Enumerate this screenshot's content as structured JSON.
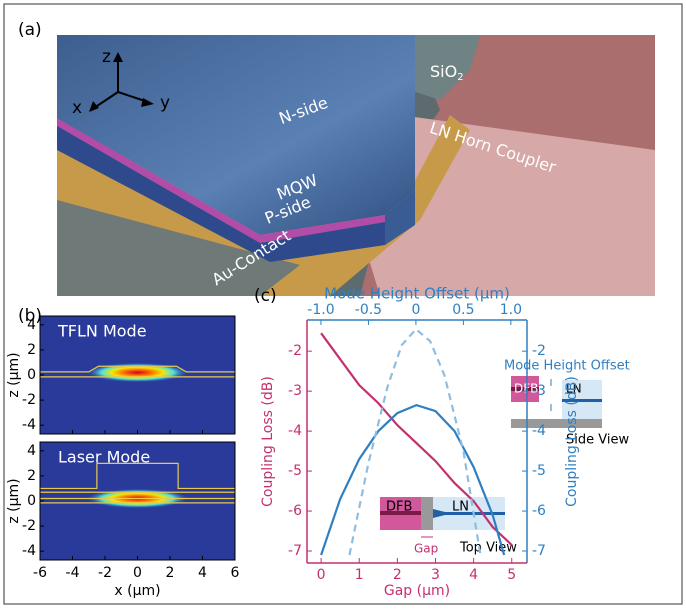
{
  "panel_a": {
    "label": "(a)",
    "axes": [
      "z",
      "x",
      "y"
    ],
    "n_side": "N-side",
    "mqw": "MQW",
    "p_side": "P-side",
    "au_contact": "Au-Contact",
    "sio2": {
      "text": "SiO",
      "subscript": "2"
    },
    "ln_horn": "LN Horn Coupler"
  },
  "panel_b": {
    "label": "(b)",
    "xlabel": "x (µm)",
    "xlim": [
      -6,
      6
    ],
    "xticks": [
      -6,
      -4,
      -2,
      0,
      2,
      4,
      6
    ],
    "plots": [
      {
        "title": "TFLN Mode",
        "ylabel": "z (µm)",
        "ylim": [
          -4.7,
          4.7
        ],
        "yticks": [
          4,
          2,
          0,
          -2,
          -4
        ]
      },
      {
        "title": "Laser Mode",
        "ylabel": "z (µm)",
        "ylim": [
          -4.7,
          4.7
        ],
        "yticks": [
          4,
          2,
          0,
          -2,
          -4
        ]
      }
    ]
  },
  "panel_c": {
    "label": "(c)",
    "annotations": {
      "mode_height": "Mode Height Offset",
      "dfb_side": "DFB",
      "ln_side": "LN",
      "side_view": "Side View",
      "dfb_top": "DFB",
      "ln_top": "LN",
      "gap": "Gap",
      "top_view": "Top View"
    }
  },
  "chart_data": {
    "type": "line",
    "xlabel": "Gap (µm)",
    "x2label": "Mode Height Offset (µm)",
    "ylabel": "Coupling Loss (dB)",
    "y2label": "Coupling Loss (dB)",
    "xlim": [
      -0.37,
      5.4
    ],
    "xticks": [
      0,
      1,
      2,
      3,
      4,
      5
    ],
    "x2lim": [
      -1.147,
      1.17
    ],
    "x2ticks": [
      {
        "value": -1,
        "label": "-1.0"
      },
      -0.5,
      0,
      0.5,
      {
        "value": 1,
        "label": "1.0"
      }
    ],
    "ylim": [
      -7.3,
      -1.22
    ],
    "yticks": [
      -2,
      -3,
      -4,
      -5,
      -6,
      -7
    ],
    "y2lim": [
      -7.3,
      -1.22
    ],
    "y2ticks": [
      -2,
      -3,
      -4,
      -5,
      -6,
      -7
    ],
    "left_color": "#c4306f",
    "right_color": "#2f7fc1",
    "series": [
      {
        "color": "#c4306f",
        "x_axis": "x",
        "axis": "y",
        "dash": false,
        "x": [
          0,
          0.5,
          1,
          1.5,
          2,
          2.5,
          3,
          3.5,
          4,
          4.5,
          5
        ],
        "values": [
          -1.55,
          -2.2,
          -2.85,
          -3.3,
          -3.85,
          -4.3,
          -4.75,
          -5.3,
          -5.75,
          -6.4,
          -6.85
        ]
      },
      {
        "color": "#2f7fc1",
        "x_axis": "x",
        "axis": "y2",
        "dash": false,
        "x": [
          0,
          0.5,
          1,
          1.5,
          2,
          2.5,
          3,
          3.5,
          4,
          4.5,
          4.8
        ],
        "values": [
          -7.1,
          -5.7,
          -4.7,
          -4.0,
          -3.55,
          -3.35,
          -3.5,
          -4.0,
          -4.9,
          -6.1,
          -7.1
        ]
      },
      {
        "color": "#8fbde0",
        "x_axis": "x2",
        "axis": "y2",
        "dash": true,
        "x": [
          -0.7,
          -0.5,
          -0.3,
          -0.15,
          0,
          0.15,
          0.3,
          0.5,
          0.68
        ],
        "values": [
          -7.1,
          -4.8,
          -2.9,
          -1.85,
          -1.45,
          -1.75,
          -2.6,
          -4.5,
          -7.1
        ]
      }
    ]
  }
}
